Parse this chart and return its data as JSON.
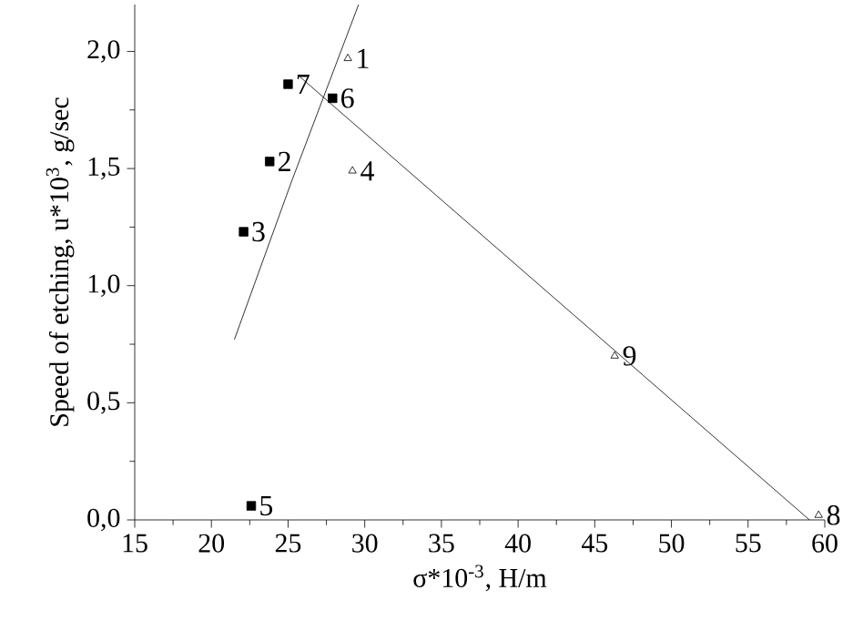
{
  "chart_data": {
    "type": "scatter",
    "xlabel": "σ*10$^{-3}$, H/m",
    "ylabel": "Speed of etching, u*10$^{3}$, g/sec",
    "xlim": [
      15,
      60
    ],
    "xticks": [
      15,
      20,
      25,
      30,
      35,
      40,
      45,
      50,
      55,
      60
    ],
    "ylim": [
      0,
      2.2
    ],
    "yticks": [
      {
        "value": 0,
        "label": "0,0"
      },
      {
        "value": 0.5,
        "label": "0,5"
      },
      {
        "value": 1,
        "label": "1,0"
      },
      {
        "value": 1.5,
        "label": "1,5"
      },
      {
        "value": 2,
        "label": "2,0"
      }
    ],
    "series": [
      {
        "marker": "square",
        "color": "#000000",
        "x": [
          25.0,
          27.9,
          23.8,
          22.1,
          22.6
        ],
        "values": [
          1.86,
          1.8,
          1.53,
          1.23,
          0.06
        ]
      },
      {
        "marker": "triangle",
        "color": "#000000",
        "x": [
          28.9,
          29.2,
          46.3,
          59.6
        ],
        "values": [
          1.97,
          1.49,
          0.7,
          0.02
        ]
      },
      {
        "type": "line",
        "marker": "none",
        "color": "#000000",
        "x": [
          21.5,
          25.2,
          29.6
        ],
        "values": [
          0.77,
          1.44,
          2.2
        ]
      },
      {
        "type": "line",
        "marker": "none",
        "color": "#000000",
        "x": [
          25.8,
          59.0
        ],
        "values": [
          1.89,
          0.0
        ]
      }
    ],
    "annotations": [
      {
        "text": "1",
        "x": 28.9,
        "y": 1.97
      },
      {
        "text": "2",
        "x": 23.8,
        "y": 1.53
      },
      {
        "text": "3",
        "x": 22.1,
        "y": 1.23
      },
      {
        "text": "4",
        "x": 29.2,
        "y": 1.49
      },
      {
        "text": "5",
        "x": 22.6,
        "y": 0.06
      },
      {
        "text": "6",
        "x": 27.9,
        "y": 1.8
      },
      {
        "text": "7",
        "x": 25.0,
        "y": 1.86
      },
      {
        "text": "8",
        "x": 59.6,
        "y": 0.02
      },
      {
        "text": "9",
        "x": 46.3,
        "y": 0.7
      }
    ]
  }
}
